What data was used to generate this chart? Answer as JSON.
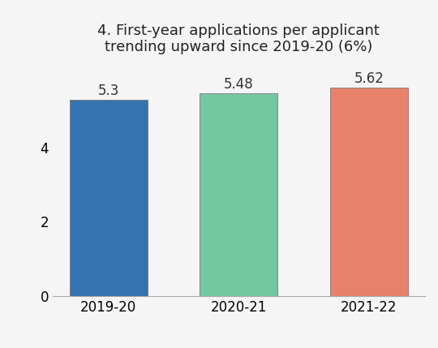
{
  "categories": [
    "2019-20",
    "2020-21",
    "2021-22"
  ],
  "values": [
    5.3,
    5.48,
    5.62
  ],
  "bar_colors": [
    "#3572B0",
    "#72C9A0",
    "#E8816A"
  ],
  "title_line1": "4. First-year applications per applicant",
  "title_line2": "trending upward since 2019-20 (6%)",
  "ylim": [
    0,
    6.3
  ],
  "yticks": [
    0,
    2,
    4
  ],
  "bar_labels": [
    "5.3",
    "5.48",
    "5.62"
  ],
  "label_fontsize": 12,
  "tick_fontsize": 12,
  "title_fontsize": 13,
  "background_color": "#f5f5f5",
  "bar_width": 0.6,
  "bar_edge_color": "#777777",
  "bar_edge_width": 0.6
}
